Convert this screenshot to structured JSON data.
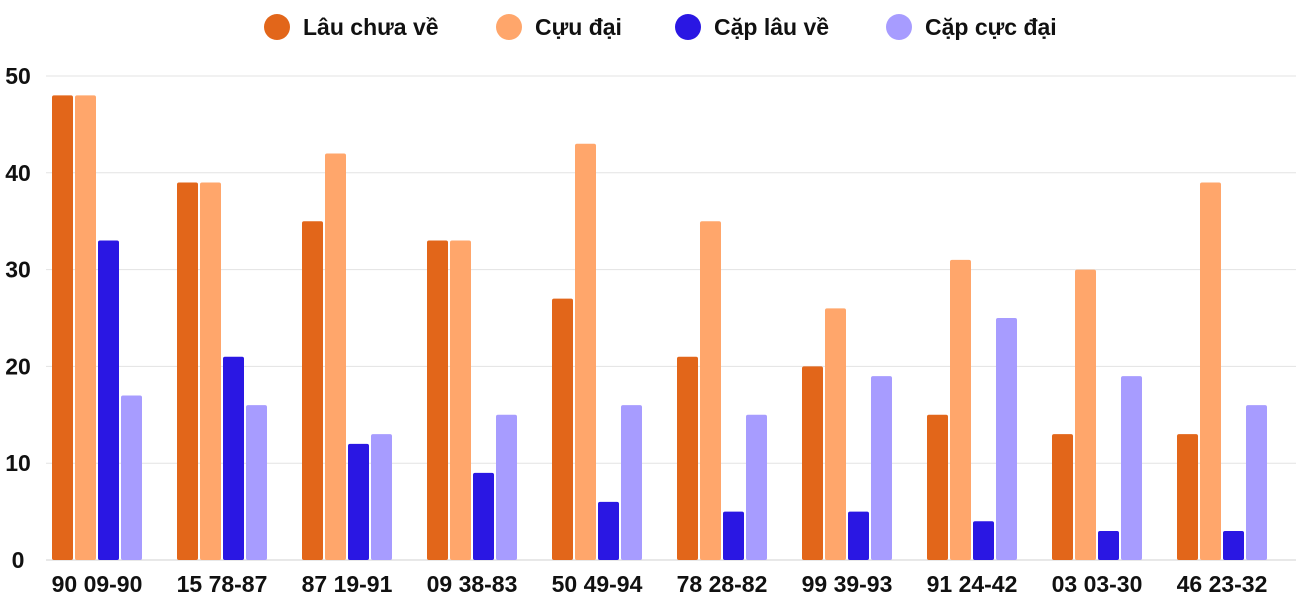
{
  "chart_data": {
    "type": "bar",
    "title": "",
    "xlabel": "",
    "ylabel": "",
    "ylim": [
      0,
      50
    ],
    "yticks": [
      0,
      10,
      20,
      30,
      40,
      50
    ],
    "grid": true,
    "legend_position": "top-center",
    "categories": [
      "90 09-90",
      "15 78-87",
      "87 19-91",
      "09 38-83",
      "50 49-94",
      "78 28-82",
      "99 39-93",
      "91 24-42",
      "03 03-30",
      "46 23-32"
    ],
    "series": [
      {
        "name": "Lâu chưa về",
        "color": "#E2661A",
        "values": [
          48,
          39,
          35,
          33,
          27,
          21,
          20,
          15,
          13,
          13
        ]
      },
      {
        "name": "Cựu đại",
        "color": "#FFA66B",
        "values": [
          48,
          39,
          42,
          33,
          43,
          35,
          26,
          31,
          30,
          39
        ]
      },
      {
        "name": "Cặp lâu về",
        "color": "#2A17E3",
        "values": [
          33,
          21,
          12,
          9,
          6,
          5,
          5,
          4,
          3,
          3
        ]
      },
      {
        "name": "Cặp cực đại",
        "color": "#A79CFF",
        "values": [
          17,
          16,
          13,
          15,
          16,
          15,
          19,
          25,
          19,
          16
        ]
      }
    ]
  }
}
